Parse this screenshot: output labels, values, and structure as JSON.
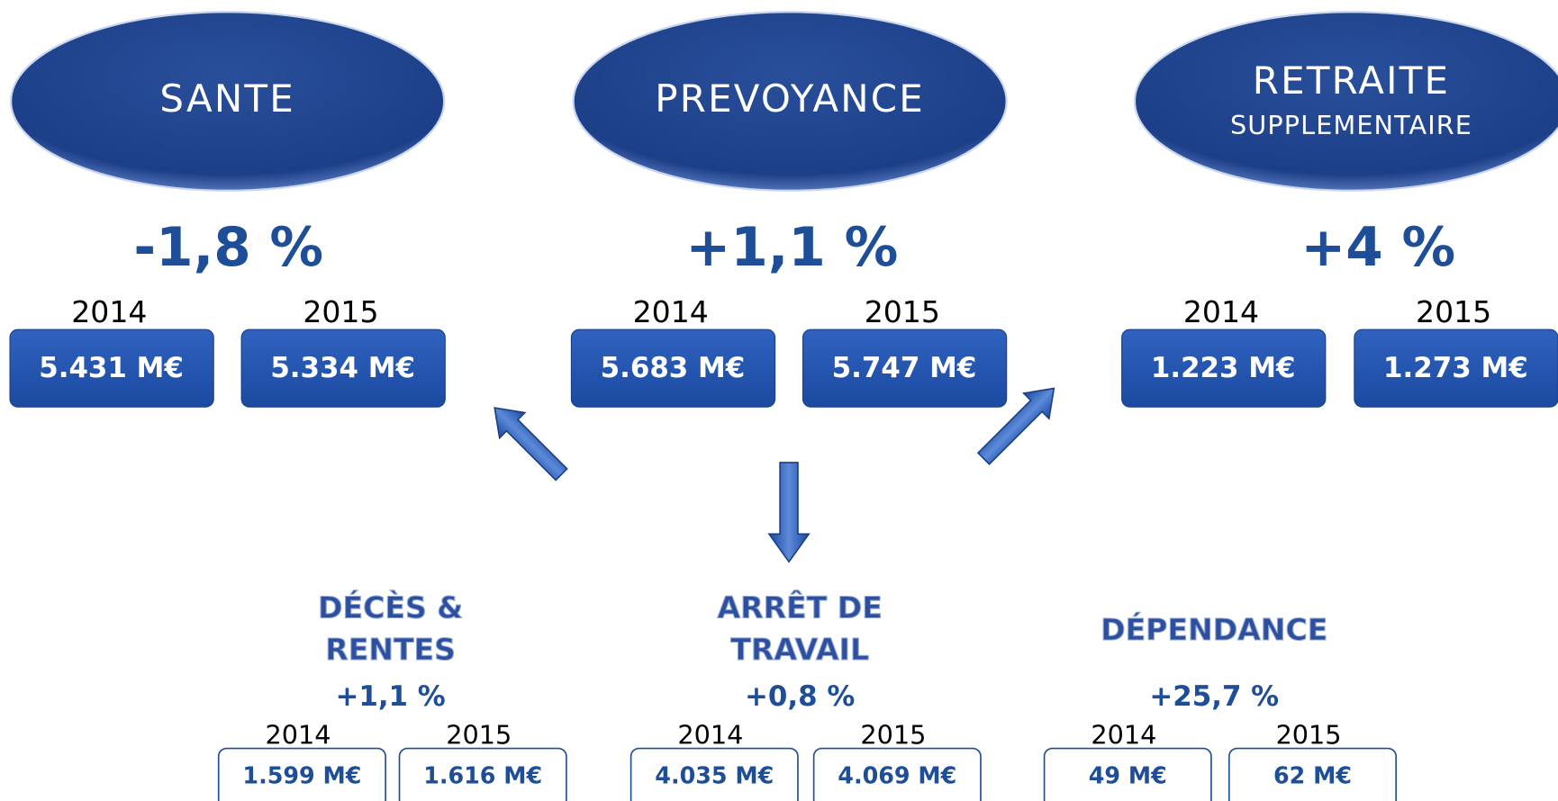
{
  "main": [
    {
      "title": "SANTE",
      "change": "-1,8 %",
      "year1": "2014",
      "year2": "2015",
      "value1": "5.431 M€",
      "value2": "5.334 M€"
    },
    {
      "title": "PREVOYANCE",
      "change": "+1,1 %",
      "year1": "2014",
      "year2": "2015",
      "value1": "5.683 M€",
      "value2": "5.747 M€"
    },
    {
      "title": "RETRAITE",
      "subtitle": "SUPPLEMENTAIRE",
      "change": "+4 %",
      "year1": "2014",
      "year2": "2015",
      "value1": "1.223 M€",
      "value2": "1.273 M€"
    }
  ],
  "sub": [
    {
      "title": [
        "DÉCÈS &",
        "RENTES"
      ],
      "change": "+1,1 %",
      "year1": "2014",
      "year2": "2015",
      "value1": "1.599 M€",
      "value2": "1.616 M€"
    },
    {
      "title": [
        "ARRÊT DE",
        "TRAVAIL"
      ],
      "change": "+0,8 %",
      "year1": "2014",
      "year2": "2015",
      "value1": "4.035 M€",
      "value2": "4.069 M€"
    },
    {
      "title": [
        "DÉPENDANCE"
      ],
      "change": "+25,7 %",
      "year1": "2014",
      "year2": "2015",
      "value1": "49 M€",
      "value2": "62 M€"
    }
  ]
}
